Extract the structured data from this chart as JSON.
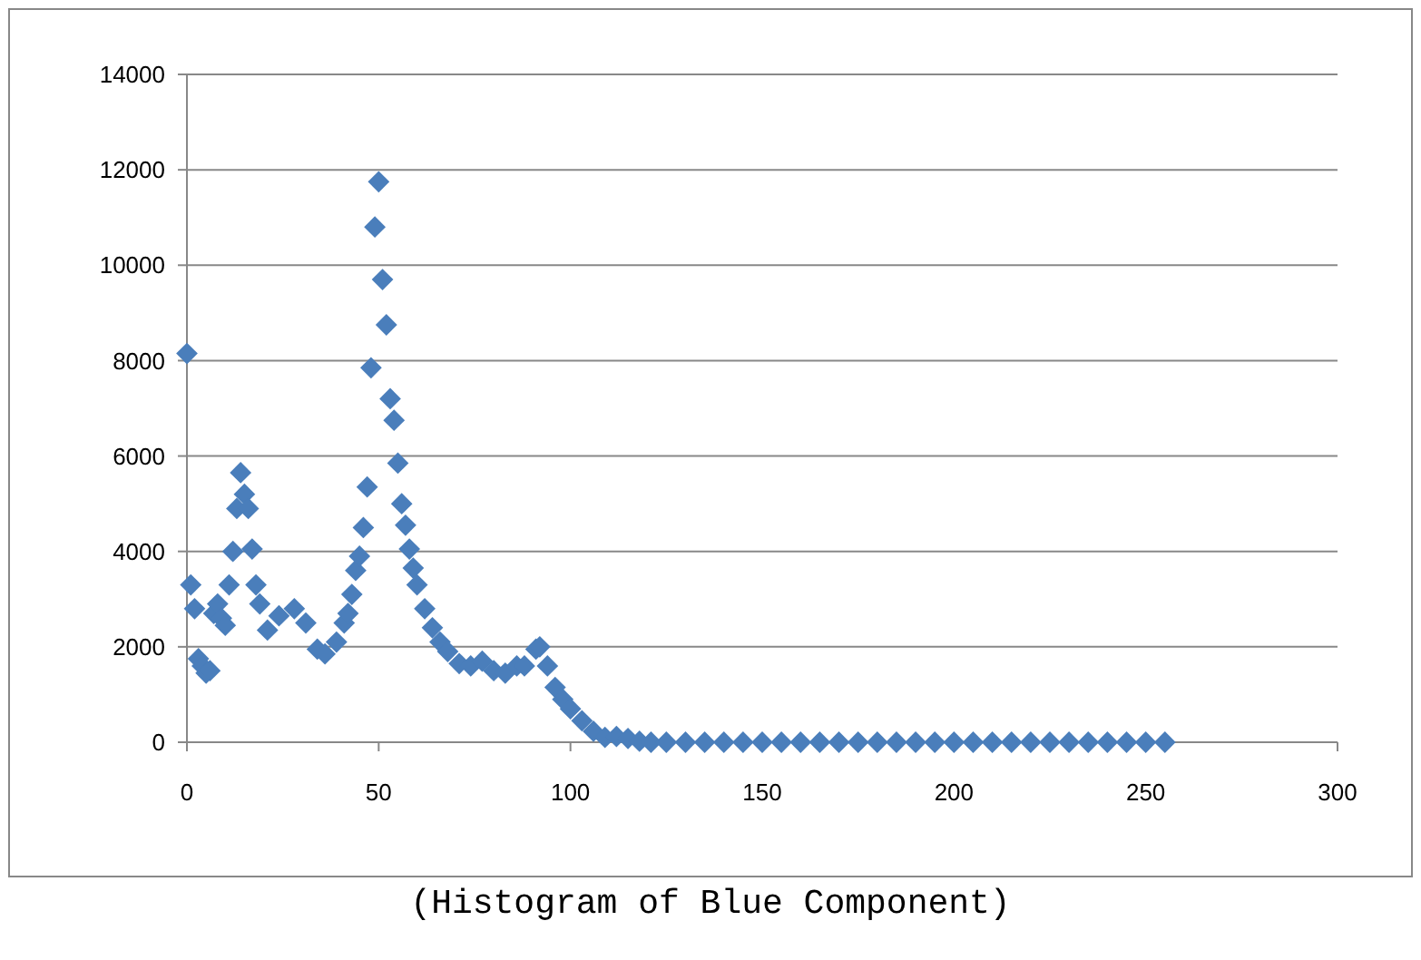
{
  "chart_data": {
    "type": "scatter",
    "marker": "diamond",
    "grid": "y",
    "xlim": [
      0,
      300
    ],
    "xticks": [
      0,
      50,
      100,
      150,
      200,
      250,
      300
    ],
    "ylim": [
      0,
      14000
    ],
    "yticks": [
      0,
      2000,
      4000,
      6000,
      8000,
      10000,
      12000,
      14000
    ],
    "annotations": [
      "(Histogram of Blue Component)"
    ],
    "series": [
      {
        "color": "#4a7ebb",
        "x": [
          0,
          1,
          2,
          3,
          4,
          5,
          6,
          7,
          8,
          9,
          10,
          11,
          12,
          13,
          14,
          15,
          16,
          17,
          18,
          19,
          21,
          24,
          28,
          31,
          34,
          36,
          39,
          41,
          42,
          43,
          44,
          45,
          46,
          47,
          48,
          49,
          50,
          51,
          52,
          53,
          54,
          55,
          56,
          57,
          58,
          59,
          60,
          62,
          64,
          66,
          68,
          71,
          74,
          77,
          80,
          83,
          86,
          88,
          91,
          92,
          94,
          96,
          98,
          100,
          103,
          106,
          109,
          112,
          115,
          118,
          121,
          125,
          130,
          135,
          140,
          145,
          150,
          155,
          160,
          165,
          170,
          175,
          180,
          185,
          190,
          195,
          200,
          205,
          210,
          215,
          220,
          225,
          230,
          235,
          240,
          245,
          250,
          255
        ],
        "values": [
          8150,
          3300,
          2800,
          1750,
          1600,
          1450,
          1500,
          2700,
          2900,
          2600,
          2450,
          3300,
          4000,
          4900,
          5650,
          5200,
          4900,
          4050,
          3300,
          2900,
          2350,
          2650,
          2800,
          2500,
          1950,
          1850,
          2100,
          2500,
          2700,
          3100,
          3600,
          3900,
          4500,
          5350,
          7850,
          10800,
          11750,
          9700,
          8750,
          7200,
          6750,
          5850,
          5000,
          4550,
          4050,
          3650,
          3300,
          2800,
          2400,
          2100,
          1900,
          1650,
          1600,
          1700,
          1500,
          1450,
          1600,
          1600,
          1950,
          2000,
          1600,
          1150,
          900,
          700,
          450,
          230,
          100,
          120,
          80,
          20,
          0,
          0,
          0,
          0,
          0,
          0,
          0,
          0,
          0,
          0,
          0,
          0,
          0,
          0,
          0,
          0,
          0,
          0,
          0,
          0,
          0,
          0,
          0,
          0,
          0,
          0,
          0,
          0
        ]
      }
    ]
  }
}
